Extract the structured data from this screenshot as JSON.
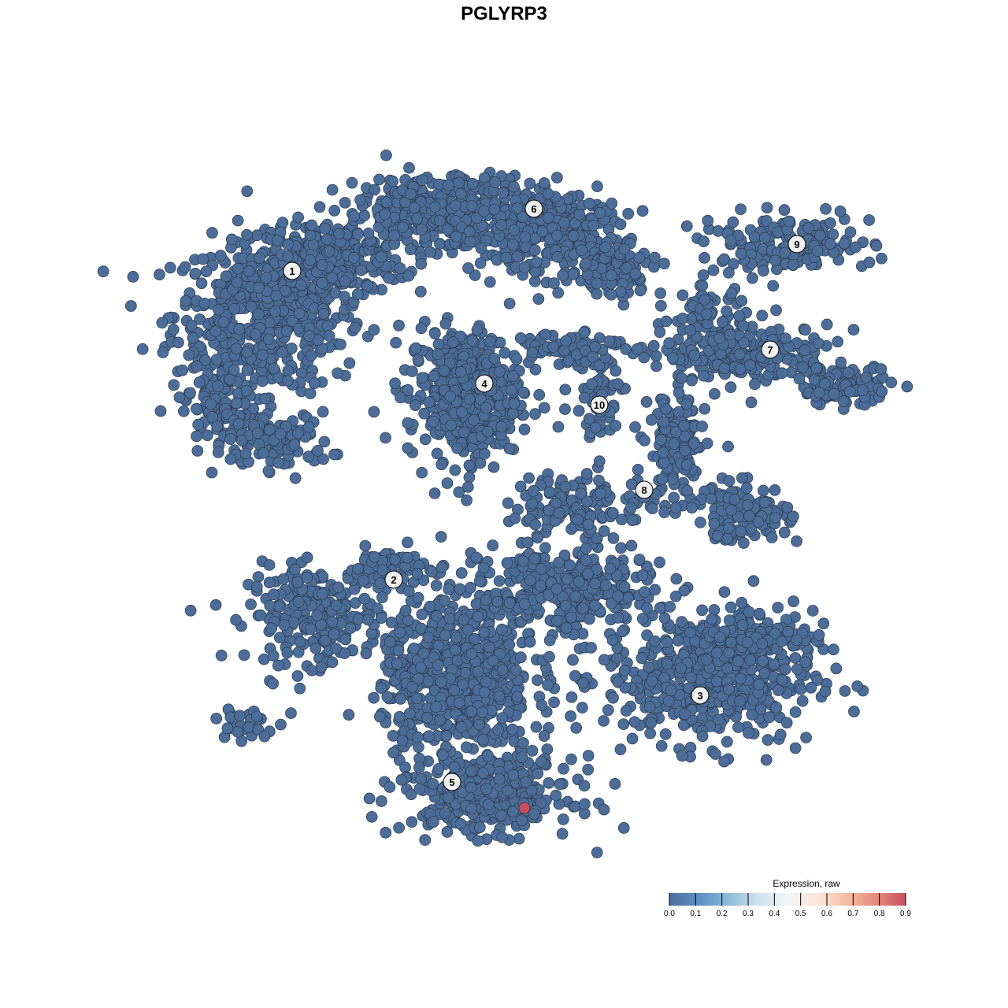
{
  "chart_data": {
    "type": "scatter",
    "title": "PGLYRP3",
    "xlabel": "",
    "ylabel": "",
    "axes_visible": false,
    "grid": false,
    "point_color_by": "expression",
    "baseline_expression": 0.0,
    "clusters": [
      {
        "label": "1",
        "label_pos": [
          -26.9,
          29.6
        ],
        "blobs": [
          [
            -30,
            24,
            10,
            8,
            520
          ],
          [
            -22,
            31,
            8,
            4,
            220
          ],
          [
            -36,
            12,
            4,
            6,
            120
          ],
          [
            -28,
            8,
            5,
            3,
            90
          ]
        ]
      },
      {
        "label": "2",
        "label_pos": [
          -14,
          -9.6
        ],
        "blobs": [
          [
            -24,
            -14,
            7,
            5,
            230
          ],
          [
            -15,
            -8,
            4,
            2,
            60
          ]
        ]
      },
      {
        "label": "3",
        "label_pos": [
          24.9,
          -24.3
        ],
        "blobs": [
          [
            26,
            -22,
            11,
            7,
            520
          ],
          [
            32,
            -17,
            6,
            3,
            120
          ]
        ]
      },
      {
        "label": "4",
        "label_pos": [
          -2.5,
          15.3
        ],
        "blobs": [
          [
            -5,
            14,
            6,
            7,
            420
          ]
        ]
      },
      {
        "label": "5",
        "label_pos": [
          -6.6,
          -35.3
        ],
        "blobs": [
          [
            -6,
            -22,
            8,
            9,
            650
          ],
          [
            -2,
            -37,
            9,
            4,
            320
          ],
          [
            8,
            -11,
            9,
            5,
            330
          ]
        ]
      },
      {
        "label": "6",
        "label_pos": [
          3.8,
          37.5
        ],
        "blobs": [
          [
            -6,
            37,
            12,
            4,
            450
          ],
          [
            6,
            34,
            8,
            4,
            220
          ],
          [
            14,
            30,
            5,
            3,
            110
          ]
        ]
      },
      {
        "label": "7",
        "label_pos": [
          33.8,
          19.6
        ],
        "blobs": [
          [
            31,
            19,
            9,
            3,
            240
          ],
          [
            43,
            15,
            5,
            2,
            90
          ],
          [
            26,
            24,
            4,
            3,
            60
          ]
        ]
      },
      {
        "label": "8",
        "label_pos": [
          17.8,
          1.8
        ],
        "blobs": [
          [
            22,
            7,
            3,
            6,
            150
          ],
          [
            30,
            -1,
            5,
            3,
            130
          ],
          [
            10,
            0,
            8,
            3,
            130
          ]
        ]
      },
      {
        "label": "9",
        "label_pos": [
          37.2,
          33.0
        ],
        "blobs": [
          [
            36,
            33,
            9,
            3,
            160
          ]
        ]
      },
      {
        "label": "10",
        "label_pos": [
          12.1,
          12.6
        ],
        "blobs": [
          [
            12,
            14,
            3,
            5,
            60
          ],
          [
            8,
            20,
            6,
            2,
            80
          ]
        ]
      },
      {
        "label": "",
        "label_pos": null,
        "blobs": [
          [
            -33,
            -28,
            3,
            2,
            30
          ]
        ]
      }
    ],
    "highlighted_points": [
      {
        "x": 2.6,
        "y": -38.6,
        "expression": 0.9
      }
    ],
    "colorbar": {
      "title": "Expression, raw",
      "range": [
        0.0,
        0.9
      ],
      "ticks": [
        "0.0",
        "0.1",
        "0.2",
        "0.3",
        "0.4",
        "0.5",
        "0.6",
        "0.7",
        "0.8",
        "0.9"
      ],
      "colors": [
        "#4b6d98",
        "#5b8fc4",
        "#8cbad9",
        "#cde2ec",
        "#f3f5f6",
        "#fbe7dd",
        "#f5bca3",
        "#e48c7b",
        "#c9515f"
      ]
    }
  }
}
